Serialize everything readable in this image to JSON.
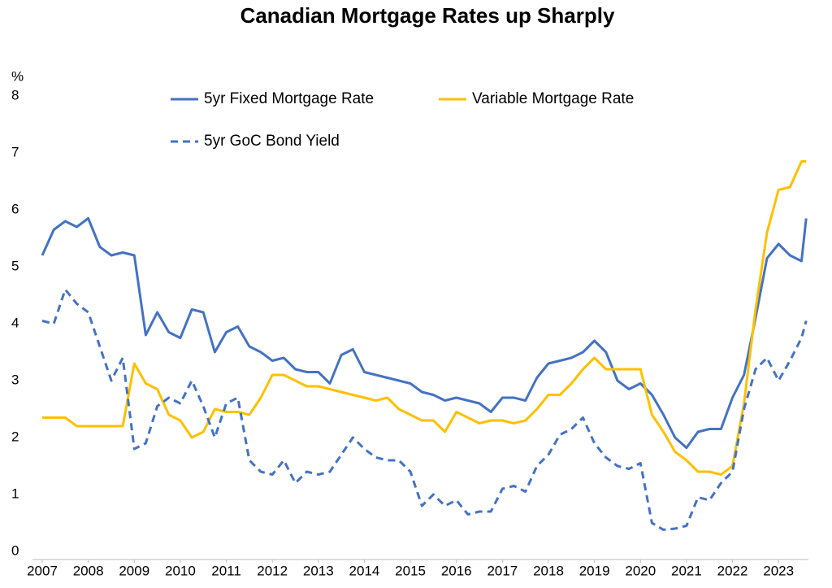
{
  "chart_data": {
    "type": "line",
    "title": "Canadian Mortgage Rates up Sharply",
    "y_label": "%",
    "x": [
      2007,
      2007.25,
      2007.5,
      2007.75,
      2008,
      2008.25,
      2008.5,
      2008.75,
      2009,
      2009.25,
      2009.5,
      2009.75,
      2010,
      2010.25,
      2010.5,
      2010.75,
      2011,
      2011.25,
      2011.5,
      2011.75,
      2012,
      2012.25,
      2012.5,
      2012.75,
      2013,
      2013.25,
      2013.5,
      2013.75,
      2014,
      2014.25,
      2014.5,
      2014.75,
      2015,
      2015.25,
      2015.5,
      2015.75,
      2016,
      2016.25,
      2016.5,
      2016.75,
      2017,
      2017.25,
      2017.5,
      2017.75,
      2018,
      2018.25,
      2018.5,
      2018.75,
      2019,
      2019.25,
      2019.5,
      2019.75,
      2020,
      2020.25,
      2020.5,
      2020.75,
      2021,
      2021.25,
      2021.5,
      2021.75,
      2022,
      2022.25,
      2022.5,
      2022.75,
      2023,
      2023.25,
      2023.5,
      2023.6
    ],
    "series": [
      {
        "name": "5yr Fixed Mortgage Rate",
        "color": "#4472c4",
        "style": "solid",
        "values": [
          5.2,
          5.65,
          5.8,
          5.7,
          5.85,
          5.35,
          5.2,
          5.25,
          5.2,
          3.8,
          4.2,
          3.85,
          3.75,
          4.25,
          4.2,
          3.5,
          3.85,
          3.95,
          3.6,
          3.5,
          3.35,
          3.4,
          3.2,
          3.15,
          3.15,
          2.95,
          3.45,
          3.55,
          3.15,
          3.1,
          3.05,
          3.0,
          2.95,
          2.8,
          2.75,
          2.65,
          2.7,
          2.65,
          2.6,
          2.45,
          2.7,
          2.7,
          2.65,
          3.05,
          3.3,
          3.35,
          3.4,
          3.5,
          3.7,
          3.5,
          3.0,
          2.85,
          2.95,
          2.75,
          2.4,
          2.0,
          1.82,
          2.1,
          2.15,
          2.15,
          2.7,
          3.1,
          4.1,
          5.15,
          5.4,
          5.2,
          5.1,
          5.85
        ]
      },
      {
        "name": "Variable Mortgage Rate",
        "color": "#ffc000",
        "style": "solid",
        "values": [
          2.35,
          2.35,
          2.35,
          2.2,
          2.2,
          2.2,
          2.2,
          2.2,
          3.3,
          2.95,
          2.85,
          2.4,
          2.3,
          2.0,
          2.1,
          2.5,
          2.45,
          2.45,
          2.4,
          2.7,
          3.1,
          3.1,
          3.0,
          2.9,
          2.9,
          2.85,
          2.8,
          2.75,
          2.7,
          2.65,
          2.7,
          2.5,
          2.4,
          2.3,
          2.3,
          2.1,
          2.45,
          2.35,
          2.25,
          2.3,
          2.3,
          2.25,
          2.3,
          2.5,
          2.75,
          2.75,
          2.95,
          3.2,
          3.4,
          3.2,
          3.2,
          3.2,
          3.2,
          2.4,
          2.1,
          1.75,
          1.6,
          1.4,
          1.4,
          1.35,
          1.5,
          2.6,
          4.25,
          5.6,
          6.35,
          6.4,
          6.85,
          6.85
        ]
      },
      {
        "name": "5yr GoC Bond Yield",
        "color": "#4472c4",
        "style": "dashed",
        "values": [
          4.05,
          4.0,
          4.6,
          4.35,
          4.2,
          3.6,
          3.0,
          3.4,
          1.8,
          1.9,
          2.55,
          2.7,
          2.6,
          3.0,
          2.55,
          2.0,
          2.6,
          2.7,
          1.6,
          1.4,
          1.35,
          1.6,
          1.2,
          1.4,
          1.35,
          1.4,
          1.7,
          2.0,
          1.8,
          1.65,
          1.6,
          1.6,
          1.4,
          0.8,
          1.0,
          0.8,
          0.9,
          0.65,
          0.7,
          0.7,
          1.1,
          1.15,
          1.05,
          1.5,
          1.7,
          2.05,
          2.15,
          2.35,
          1.9,
          1.65,
          1.5,
          1.45,
          1.55,
          0.5,
          0.38,
          0.4,
          0.45,
          0.95,
          0.9,
          1.2,
          1.4,
          2.5,
          3.2,
          3.4,
          3.0,
          3.35,
          3.75,
          4.05
        ]
      }
    ],
    "xlim": [
      2007,
      2023.65
    ],
    "xticks": [
      2007,
      2008,
      2009,
      2010,
      2011,
      2012,
      2013,
      2014,
      2015,
      2016,
      2017,
      2018,
      2019,
      2020,
      2021,
      2022,
      2023
    ],
    "ylim": [
      0,
      8
    ],
    "yticks": [
      0,
      1,
      2,
      3,
      4,
      5,
      6,
      7,
      8
    ],
    "grid": false
  }
}
